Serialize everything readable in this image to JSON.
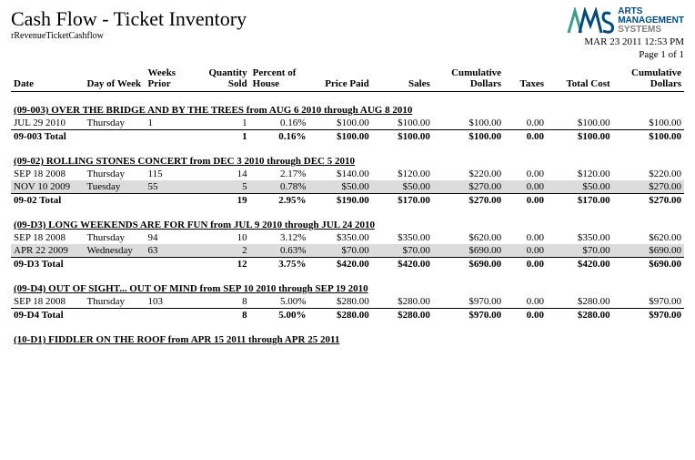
{
  "header": {
    "title": "Cash Flow - Ticket Inventory",
    "subtitle": "rRevenueTicketCashflow",
    "timestamp": "MAR 23 2011 12:53 PM",
    "page": "Page 1 of 1",
    "logo": {
      "line1": "ARTS",
      "line2": "MANAGEMENT",
      "line3": "SYSTEMS"
    }
  },
  "columns": {
    "date": "Date",
    "day": "Day of Week",
    "weeks": "Weeks Prior",
    "qty": "Quantity Sold",
    "pct": "Percent of House",
    "price": "Price Paid",
    "sales": "Sales",
    "cum1": "Cumulative Dollars",
    "tax": "Taxes",
    "cost": "Total Cost",
    "cum2": "Cumulative Dollars"
  },
  "colors": {
    "zebra": "#dcdcdc",
    "logo_blue": "#004a7f",
    "logo_teal": "#3a9e8f",
    "logo_gray": "#808080"
  },
  "sections": [
    {
      "header": "(09-003) OVER THE BRIDGE AND BY THE TREES from AUG 6 2010 through AUG 8 2010",
      "rows": [
        {
          "date": "JUL 29 2010",
          "day": "Thursday",
          "weeks": "1",
          "qty": "1",
          "pct": "0.16%",
          "price": "$100.00",
          "sales": "$100.00",
          "cum1": "$100.00",
          "tax": "0.00",
          "cost": "$100.00",
          "cum2": "$100.00",
          "zebra": false
        }
      ],
      "total": {
        "label": "09-003 Total",
        "qty": "1",
        "pct": "0.16%",
        "price": "$100.00",
        "sales": "$100.00",
        "cum1": "$100.00",
        "tax": "0.00",
        "cost": "$100.00",
        "cum2": "$100.00"
      }
    },
    {
      "header": "(09-02) ROLLING STONES CONCERT from DEC 3 2010 through DEC 5 2010",
      "rows": [
        {
          "date": "SEP 18 2008",
          "day": "Thursday",
          "weeks": "115",
          "qty": "14",
          "pct": "2.17%",
          "price": "$140.00",
          "sales": "$120.00",
          "cum1": "$220.00",
          "tax": "0.00",
          "cost": "$120.00",
          "cum2": "$220.00",
          "zebra": false
        },
        {
          "date": "NOV 10 2009",
          "day": "Tuesday",
          "weeks": "55",
          "qty": "5",
          "pct": "0.78%",
          "price": "$50.00",
          "sales": "$50.00",
          "cum1": "$270.00",
          "tax": "0.00",
          "cost": "$50.00",
          "cum2": "$270.00",
          "zebra": true
        }
      ],
      "total": {
        "label": "09-02 Total",
        "qty": "19",
        "pct": "2.95%",
        "price": "$190.00",
        "sales": "$170.00",
        "cum1": "$270.00",
        "tax": "0.00",
        "cost": "$170.00",
        "cum2": "$270.00"
      }
    },
    {
      "header": "(09-D3) LONG WEEKENDS ARE FOR FUN from JUL 9 2010 through JUL 24 2010",
      "rows": [
        {
          "date": "SEP 18 2008",
          "day": "Thursday",
          "weeks": "94",
          "qty": "10",
          "pct": "3.12%",
          "price": "$350.00",
          "sales": "$350.00",
          "cum1": "$620.00",
          "tax": "0.00",
          "cost": "$350.00",
          "cum2": "$620.00",
          "zebra": false
        },
        {
          "date": "APR 22 2009",
          "day": "Wednesday",
          "weeks": "63",
          "qty": "2",
          "pct": "0.63%",
          "price": "$70.00",
          "sales": "$70.00",
          "cum1": "$690.00",
          "tax": "0.00",
          "cost": "$70.00",
          "cum2": "$690.00",
          "zebra": true
        }
      ],
      "total": {
        "label": "09-D3 Total",
        "qty": "12",
        "pct": "3.75%",
        "price": "$420.00",
        "sales": "$420.00",
        "cum1": "$690.00",
        "tax": "0.00",
        "cost": "$420.00",
        "cum2": "$690.00"
      }
    },
    {
      "header": "(09-D4) OUT OF SIGHT... OUT OF MIND from SEP 10 2010 through SEP 19 2010",
      "rows": [
        {
          "date": "SEP 18 2008",
          "day": "Thursday",
          "weeks": "103",
          "qty": "8",
          "pct": "5.00%",
          "price": "$280.00",
          "sales": "$280.00",
          "cum1": "$970.00",
          "tax": "0.00",
          "cost": "$280.00",
          "cum2": "$970.00",
          "zebra": false
        }
      ],
      "total": {
        "label": "09-D4 Total",
        "qty": "8",
        "pct": "5.00%",
        "price": "$280.00",
        "sales": "$280.00",
        "cum1": "$970.00",
        "tax": "0.00",
        "cost": "$280.00",
        "cum2": "$970.00"
      }
    },
    {
      "header": "(10-D1) FIDDLER ON THE ROOF from APR 15 2011 through APR 25 2011",
      "rows": [],
      "total": null
    }
  ]
}
